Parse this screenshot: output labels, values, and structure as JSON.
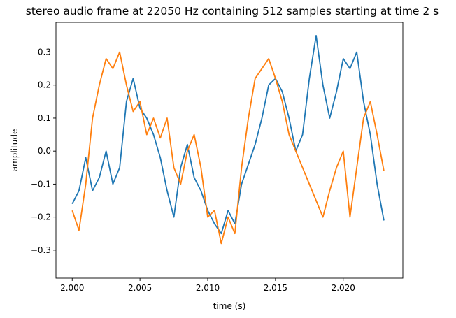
{
  "chart_data": {
    "type": "line",
    "title": "stereo audio frame at 22050 Hz containing 512 samples starting at time 2 s",
    "xlabel": "time (s)",
    "ylabel": "amplitude",
    "xlim": [
      1.9988,
      2.0244
    ],
    "ylim": [
      -0.385,
      0.39
    ],
    "x_ticks": [
      2.0,
      2.005,
      2.01,
      2.015,
      2.02
    ],
    "x_tick_labels": [
      "2.000",
      "2.005",
      "2.010",
      "2.015",
      "2.020"
    ],
    "y_ticks": [
      -0.3,
      -0.2,
      -0.1,
      0.0,
      0.1,
      0.2,
      0.3
    ],
    "y_tick_labels": [
      "−0.3",
      "−0.2",
      "−0.1",
      "0.0",
      "0.1",
      "0.2",
      "0.3"
    ],
    "grid": false,
    "legend": "none",
    "series": [
      {
        "color": "#1f77b4",
        "x": [
          2.0,
          2.0005,
          2.001,
          2.0015,
          2.002,
          2.0025,
          2.003,
          2.0035,
          2.004,
          2.0045,
          2.005,
          2.0055,
          2.006,
          2.0065,
          2.007,
          2.0075,
          2.008,
          2.0085,
          2.009,
          2.0095,
          2.01,
          2.0105,
          2.011,
          2.0115,
          2.012,
          2.0125,
          2.013,
          2.0135,
          2.014,
          2.0145,
          2.015,
          2.0155,
          2.016,
          2.0165,
          2.017,
          2.0175,
          2.018,
          2.0185,
          2.019,
          2.0195,
          2.02,
          2.0205,
          2.021,
          2.0215,
          2.022,
          2.0225,
          2.023
        ],
        "values": [
          -0.16,
          -0.12,
          -0.02,
          -0.12,
          -0.08,
          0.0,
          -0.1,
          -0.05,
          0.15,
          0.22,
          0.13,
          0.1,
          0.05,
          -0.02,
          -0.12,
          -0.2,
          -0.05,
          0.02,
          -0.08,
          -0.12,
          -0.18,
          -0.22,
          -0.25,
          -0.18,
          -0.22,
          -0.1,
          -0.04,
          0.02,
          0.1,
          0.2,
          0.22,
          0.18,
          0.1,
          0.0,
          0.05,
          0.22,
          0.35,
          0.2,
          0.1,
          0.18,
          0.28,
          0.25,
          0.3,
          0.15,
          0.05,
          -0.1,
          -0.21
        ]
      },
      {
        "color": "#ff7f0e",
        "x": [
          2.0,
          2.0005,
          2.001,
          2.0015,
          2.002,
          2.0025,
          2.003,
          2.0035,
          2.004,
          2.0045,
          2.005,
          2.0055,
          2.006,
          2.0065,
          2.007,
          2.0075,
          2.008,
          2.0085,
          2.009,
          2.0095,
          2.01,
          2.0105,
          2.011,
          2.0115,
          2.012,
          2.0125,
          2.013,
          2.0135,
          2.014,
          2.0145,
          2.015,
          2.0155,
          2.016,
          2.0165,
          2.017,
          2.0175,
          2.018,
          2.0185,
          2.019,
          2.0195,
          2.02,
          2.0205,
          2.021,
          2.0215,
          2.022,
          2.0225,
          2.023
        ],
        "values": [
          -0.18,
          -0.24,
          -0.1,
          0.1,
          0.2,
          0.28,
          0.25,
          0.3,
          0.2,
          0.12,
          0.15,
          0.05,
          0.1,
          0.04,
          0.1,
          -0.05,
          -0.1,
          0.0,
          0.05,
          -0.05,
          -0.2,
          -0.18,
          -0.28,
          -0.2,
          -0.25,
          -0.05,
          0.1,
          0.22,
          0.25,
          0.28,
          0.22,
          0.15,
          0.05,
          0.0,
          -0.05,
          -0.1,
          -0.15,
          -0.2,
          -0.12,
          -0.05,
          0.0,
          -0.2,
          -0.05,
          0.1,
          0.15,
          0.05,
          -0.06
        ]
      }
    ]
  }
}
